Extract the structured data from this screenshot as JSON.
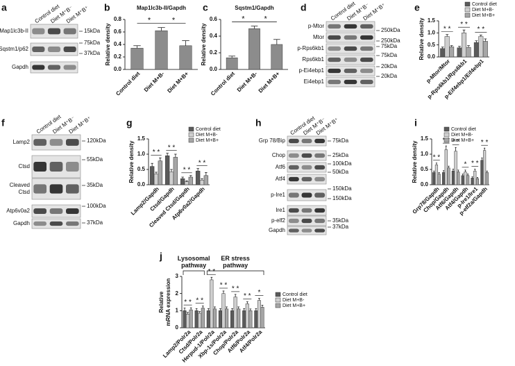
{
  "blots": [
    {
      "panel": "a",
      "lanes": [
        "Control diet",
        "Diet M⁺B⁻",
        "Diet M⁺B⁺"
      ],
      "rows": [
        "Map1lc3b-II",
        "Sqstm1/p62",
        "Gapdh"
      ],
      "markers": [
        "15kDa",
        "75kDa",
        "37kDa"
      ]
    },
    {
      "panel": "d",
      "lanes": [
        "Control diet",
        "Diet M⁺B⁻",
        "Diet M⁺B⁺"
      ],
      "rows": [
        "p-Mtor",
        "Mtor",
        "p-Rps6kb1",
        "Rps6kb1",
        "p-Ei4ebp1",
        "Ei4ebp1"
      ],
      "markers": [
        "250kDa",
        "250kDa",
        "75kDa",
        "75kDa",
        "20kDa",
        "20kDa"
      ]
    },
    {
      "panel": "f",
      "lanes": [
        "Control diet",
        "Diet M⁺B⁻",
        "Diet M⁺B⁺"
      ],
      "rows": [
        "Lamp2",
        "Ctsd",
        [
          "Cleaved",
          "Ctsd"
        ],
        "Atp6v0a2",
        "Gapdh"
      ],
      "markers": [
        "120kDa",
        "55kDa",
        "35kDa",
        "100kDa",
        "37kDa"
      ]
    },
    {
      "panel": "h",
      "lanes": [
        "Control diet",
        "Diet M⁺B⁻",
        "Diet M⁺B⁺"
      ],
      "rows": [
        "Grp 78/Bip",
        "Chop",
        "Atf6",
        "Atf4",
        "p-Ire1",
        "Ire1",
        "p-elf2",
        "Gapdh"
      ],
      "markers": [
        "75kDa",
        "25kDa",
        "100kDa",
        "50kDa",
        "150kDa",
        "150kDa",
        "35kDa",
        "37kDa"
      ]
    }
  ],
  "chart_data": [
    {
      "panel": "b",
      "type": "bar",
      "title": "Map1lc3b-II/Gapdh",
      "ylabel": [
        "Relative density"
      ],
      "categories": [
        "Control diet",
        "Diet M+B-",
        "Diet M+B+"
      ],
      "values": [
        0.34,
        0.62,
        0.38
      ],
      "errors": [
        0.04,
        0.05,
        0.08
      ],
      "color": "#8c8c8c",
      "ylim": [
        0,
        0.8
      ],
      "yticks": [
        {
          "value": 0,
          "label": "0.0"
        },
        0.2,
        0.4,
        0.6,
        0.8
      ],
      "annotations": [
        "*",
        "*"
      ]
    },
    {
      "panel": "c",
      "type": "bar",
      "title": "Sqstm1/Gapdh",
      "ylabel": [
        "Relative density"
      ],
      "categories": [
        "Control diet",
        "Diet M+B-",
        "Diet M+B+"
      ],
      "values": [
        0.14,
        0.49,
        0.3
      ],
      "errors": [
        0.02,
        0.03,
        0.06
      ],
      "color": "#8c8c8c",
      "ylim": [
        0,
        0.6
      ],
      "yticks": [
        {
          "value": 0,
          "label": "0.0"
        },
        0.2,
        0.4,
        0.6
      ],
      "annotations": [
        "*",
        "*"
      ]
    },
    {
      "panel": "e",
      "type": "bar",
      "ylabel": [
        "Relative density"
      ],
      "categories": [
        "p-Mtor/Mtor",
        "p-Rps6kb1/Rps6kb1",
        "p-Eif4ebp1/Eif4ebp1"
      ],
      "series": [
        {
          "name": "Control diet",
          "color": "#5b5b5b",
          "values": [
            0.35,
            0.38,
            0.6
          ],
          "errors": [
            0.06,
            0.06,
            0.07
          ]
        },
        {
          "name": "Diet M+B-",
          "color": "#cfcfcf",
          "values": [
            0.85,
            1.0,
            0.85
          ],
          "errors": [
            0.08,
            0.12,
            0.06
          ]
        },
        {
          "name": "Diet M+B+",
          "color": "#a6a6a6",
          "values": [
            0.42,
            0.4,
            0.65
          ],
          "errors": [
            0.05,
            0.07,
            0.1
          ]
        }
      ],
      "ylim": [
        0,
        1.5
      ],
      "yticks": [
        {
          "value": 0,
          "label": "0.0"
        },
        0.5,
        {
          "value": 1,
          "label": "1.0"
        },
        1.5
      ],
      "annotations": [
        "* *",
        "* *",
        "* *"
      ],
      "legend": "top-right"
    },
    {
      "panel": "g",
      "type": "bar",
      "ylabel": [
        "Relative density"
      ],
      "categories": [
        "Lamp2/Gapdh",
        "Ctsd/Gapdh",
        "Cleaved Ctsd/Gapdh",
        "Atp6v0a2/Gapdh"
      ],
      "series": [
        {
          "name": "Control diet",
          "color": "#5b5b5b",
          "values": [
            0.6,
            0.95,
            0.2,
            0.45
          ],
          "errors": [
            0.1,
            0.08,
            0.05,
            0.08
          ]
        },
        {
          "name": "Diet M+B-",
          "color": "#cfcfcf",
          "values": [
            0.35,
            0.42,
            0.1,
            0.15
          ],
          "errors": [
            0.06,
            0.08,
            0.03,
            0.05
          ]
        },
        {
          "name": "Diet M+B+",
          "color": "#a6a6a6",
          "values": [
            0.78,
            0.9,
            0.25,
            0.3
          ],
          "errors": [
            0.1,
            0.1,
            0.05,
            0.1
          ]
        }
      ],
      "ylim": [
        0,
        1.5
      ],
      "yticks": [
        {
          "value": 0,
          "label": "0.0"
        },
        0.5,
        {
          "value": 1,
          "label": "1.0"
        },
        1.5
      ],
      "annotations": [
        "* *",
        "* *",
        "* *",
        "* *"
      ],
      "legend": "top-right"
    },
    {
      "panel": "i",
      "type": "bar",
      "ylabel": [
        "Relative density"
      ],
      "categories": [
        "Grp78/Gapdh",
        "Chop/Gapdh",
        "Atf6/Gapdh",
        "Atf4/Gapdh",
        "p-Ire1/Ire1",
        "p-eIf2a/Gapdh"
      ],
      "series": [
        {
          "name": "Control diet",
          "color": "#5b5b5b",
          "values": [
            0.4,
            0.4,
            0.45,
            0.3,
            0.22,
            0.8
          ],
          "errors": [
            0.05,
            0.06,
            0.06,
            0.05,
            0.04,
            0.08
          ]
        },
        {
          "name": "Diet M+B-",
          "color": "#cfcfcf",
          "values": [
            0.65,
            1.15,
            1.1,
            0.42,
            0.45,
            1.12
          ],
          "errors": [
            0.06,
            0.12,
            0.12,
            0.06,
            0.06,
            0.08
          ]
        },
        {
          "name": "Diet M+B+",
          "color": "#a6a6a6",
          "values": [
            0.35,
            0.55,
            0.42,
            0.3,
            0.2,
            0.4
          ],
          "errors": [
            0.05,
            0.06,
            0.06,
            0.05,
            0.04,
            0.05
          ]
        }
      ],
      "ylim": [
        0,
        1.5
      ],
      "yticks": [
        {
          "value": 0,
          "label": "0.0"
        },
        0.5,
        {
          "value": 1,
          "label": "1.0"
        },
        1.5
      ],
      "annotations": [
        "* *",
        "* *",
        "* *",
        "*",
        "* *",
        "* *"
      ],
      "legend": "top-right"
    },
    {
      "panel": "j",
      "type": "bar",
      "ylabel": [
        "Relative",
        "mRNA expression"
      ],
      "categories": [
        "Lamp2/Polr2a",
        "Ctsd/Polr2a",
        "Herpud-1/Polr2a",
        "Xbp-1s/Polr2a",
        "Chop/Polr2a",
        "Atf6/Polr2a",
        "Atf4/Polr2a"
      ],
      "series": [
        {
          "name": "Control diet",
          "color": "#5b5b5b",
          "values": [
            1.0,
            1.0,
            1.0,
            1.0,
            1.0,
            1.0,
            1.0
          ],
          "errors": [
            0.15,
            0.12,
            0.12,
            0.12,
            0.12,
            0.12,
            0.12
          ]
        },
        {
          "name": "Diet M+B-",
          "color": "#cfcfcf",
          "values": [
            0.8,
            0.85,
            2.8,
            2.0,
            1.8,
            1.4,
            1.6
          ],
          "errors": [
            0.1,
            0.1,
            0.15,
            0.15,
            0.15,
            0.12,
            0.12
          ]
        },
        {
          "name": "Diet M+B+",
          "color": "#a6a6a6",
          "values": [
            1.05,
            1.15,
            1.1,
            1.1,
            1.1,
            1.0,
            1.2
          ],
          "errors": [
            0.12,
            0.12,
            0.12,
            0.12,
            0.12,
            0.1,
            0.12
          ]
        }
      ],
      "ylim": [
        0,
        3
      ],
      "yticks": [
        0,
        1,
        2,
        3
      ],
      "annotations": [
        "* *",
        "* *",
        "* *",
        "* *",
        "* *",
        "* *",
        "*"
      ],
      "legend": "right",
      "groups": [
        [
          "Lysosomal",
          "pathway"
        ],
        [
          "ER stress",
          "pathway"
        ]
      ]
    }
  ]
}
